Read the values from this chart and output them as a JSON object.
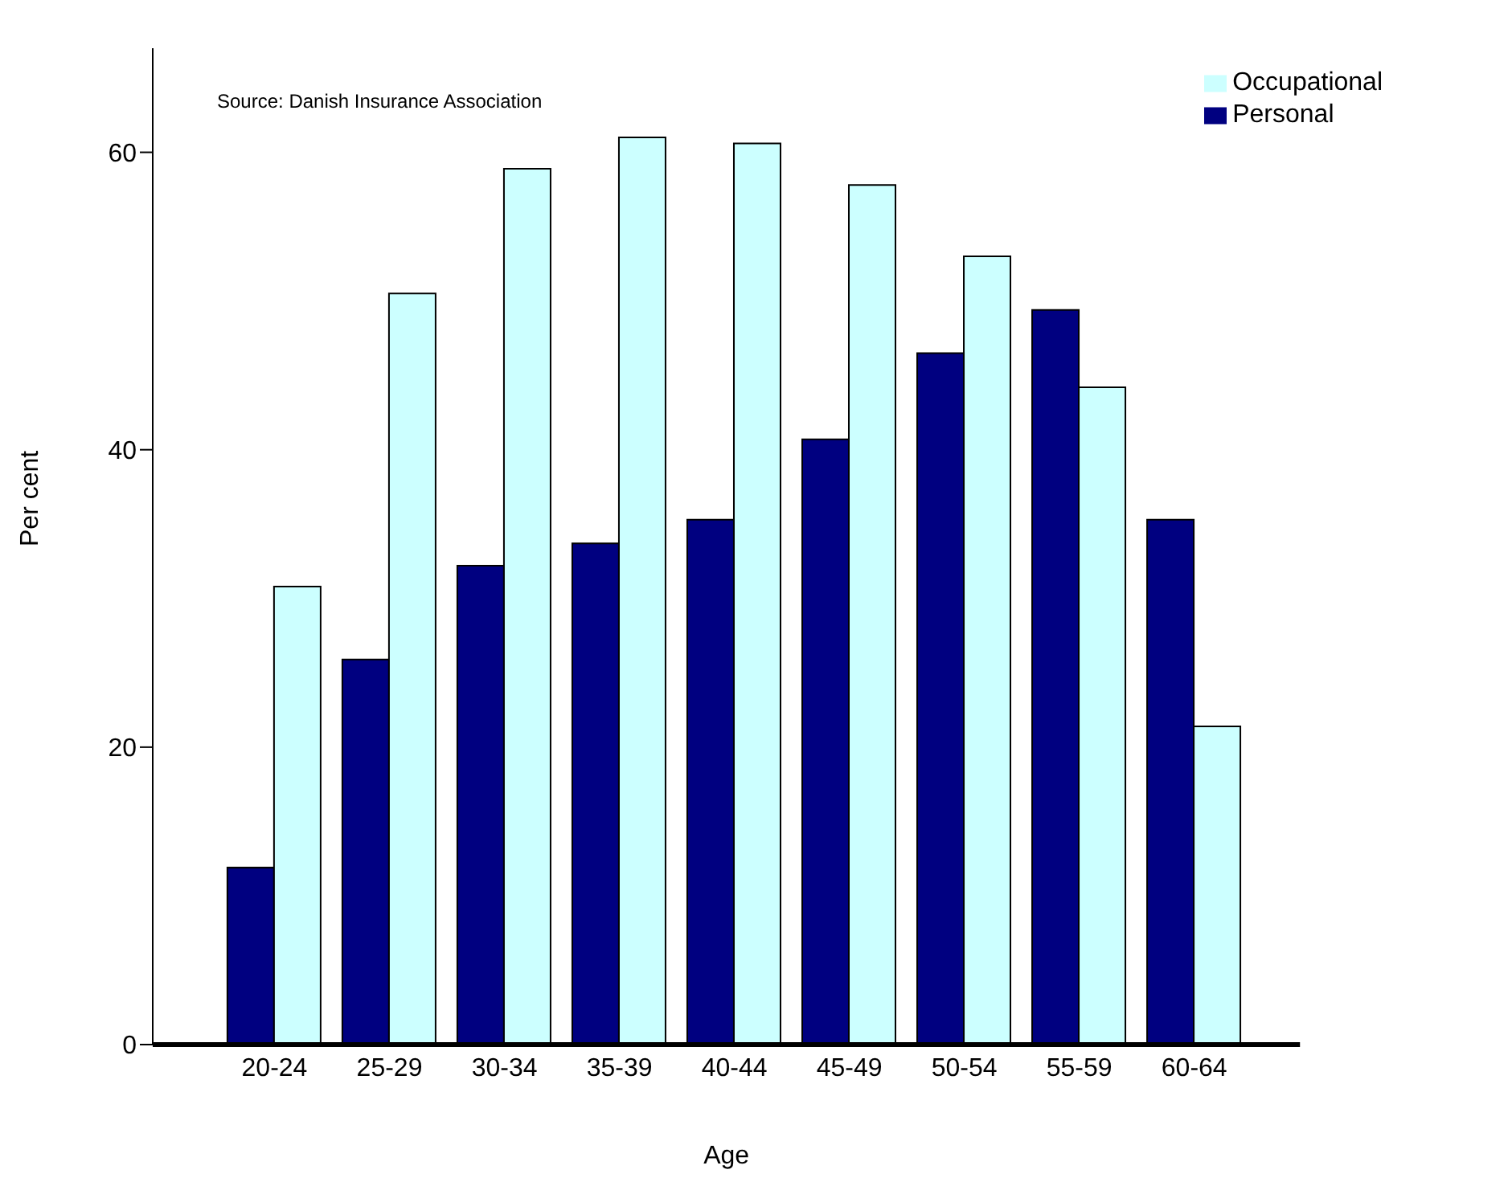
{
  "chart_data": {
    "type": "bar",
    "xlabel": "Age",
    "ylabel": "Per cent",
    "categories": [
      "20-24",
      "25-29",
      "30-34",
      "35-39",
      "40-44",
      "45-49",
      "50-54",
      "55-59",
      "60-64"
    ],
    "series": [
      {
        "name": "Personal",
        "color": "#000080",
        "values": [
          11.9,
          25.9,
          32.2,
          33.7,
          35.3,
          40.7,
          46.5,
          49.4,
          35.3
        ]
      },
      {
        "name": "Occupational",
        "color": "#ccffff",
        "values": [
          30.8,
          50.5,
          58.9,
          61.0,
          60.6,
          57.8,
          53.0,
          44.2,
          21.4
        ]
      }
    ],
    "ylim": [
      0,
      67
    ],
    "yticks": [
      0,
      20,
      40,
      60
    ],
    "grid": false,
    "legend": "top right",
    "annotations": [
      "Source: Danish Insurance Association"
    ]
  }
}
